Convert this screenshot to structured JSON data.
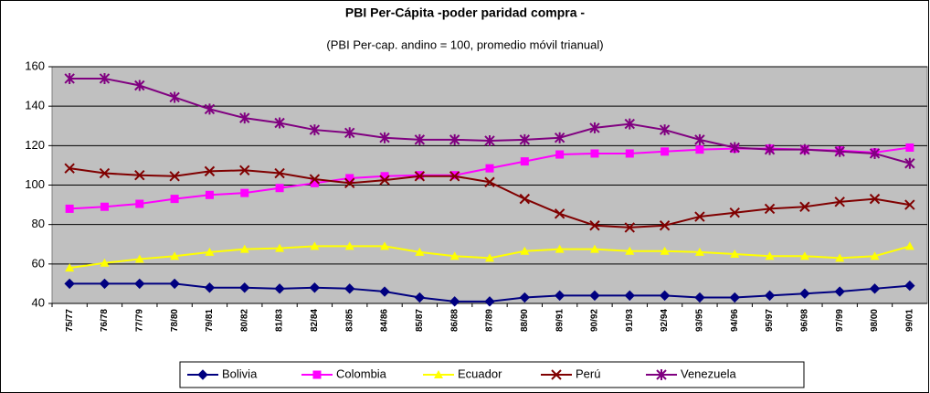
{
  "chart_data": {
    "type": "line",
    "title": "PBI Per-Cápita  -poder paridad compra -",
    "subtitle": "(PBI Per-cap. andino = 100, promedio móvil trianual)",
    "categories": [
      "75/77",
      "76/78",
      "77/79",
      "78/80",
      "79/81",
      "80/82",
      "81/83",
      "82/84",
      "83/85",
      "84/86",
      "85/87",
      "86/88",
      "87/89",
      "88/90",
      "89/91",
      "90/92",
      "91/93",
      "92/94",
      "93/95",
      "94/96",
      "95/97",
      "96/98",
      "97/99",
      "98/00",
      "99/01"
    ],
    "series": [
      {
        "name": "Bolivia",
        "color": "#000080",
        "marker": "diamond",
        "values": [
          50,
          50,
          50,
          50,
          48,
          48,
          47.5,
          48,
          47.5,
          46,
          43,
          41,
          41,
          43,
          44,
          44,
          44,
          44,
          43,
          43,
          44,
          45,
          46,
          47.5,
          49
        ]
      },
      {
        "name": "Colombia",
        "color": "#ff00ff",
        "marker": "square",
        "values": [
          88,
          89,
          90.5,
          93,
          95,
          96,
          98.5,
          101,
          103.5,
          104.5,
          105,
          105,
          108.5,
          112,
          115.5,
          116,
          116,
          117,
          118,
          118.5,
          118.5,
          118,
          117.5,
          116.5,
          119
        ]
      },
      {
        "name": "Ecuador",
        "color": "#ffff00",
        "marker": "triangle",
        "values": [
          58,
          60.5,
          62.5,
          64,
          66,
          67.5,
          68,
          69,
          69,
          69,
          66,
          64,
          63,
          66.5,
          67.5,
          67.5,
          66.5,
          66.5,
          66,
          65,
          64,
          64,
          63,
          64,
          69
        ]
      },
      {
        "name": "Perú",
        "color": "#800000",
        "marker": "x",
        "values": [
          108.5,
          106,
          105,
          104.5,
          107,
          107.5,
          106,
          103,
          101,
          102.5,
          104.5,
          104.5,
          101.5,
          93,
          85.5,
          79.5,
          78.5,
          79.5,
          84,
          86,
          88,
          89,
          91.5,
          93,
          90
        ]
      },
      {
        "name": "Venezuela",
        "color": "#800080",
        "marker": "star",
        "values": [
          154,
          154,
          150.5,
          144.5,
          138.5,
          134,
          131.5,
          128,
          126.5,
          124,
          123,
          123,
          122.5,
          123,
          124,
          129,
          131,
          128,
          123,
          119,
          118,
          118,
          117,
          116,
          111
        ]
      }
    ],
    "ylim": [
      40,
      160
    ],
    "yticks": [
      40,
      60,
      80,
      100,
      120,
      140,
      160
    ],
    "grid": true,
    "legend": "bottom",
    "plot_background": "#c0c0c0"
  }
}
